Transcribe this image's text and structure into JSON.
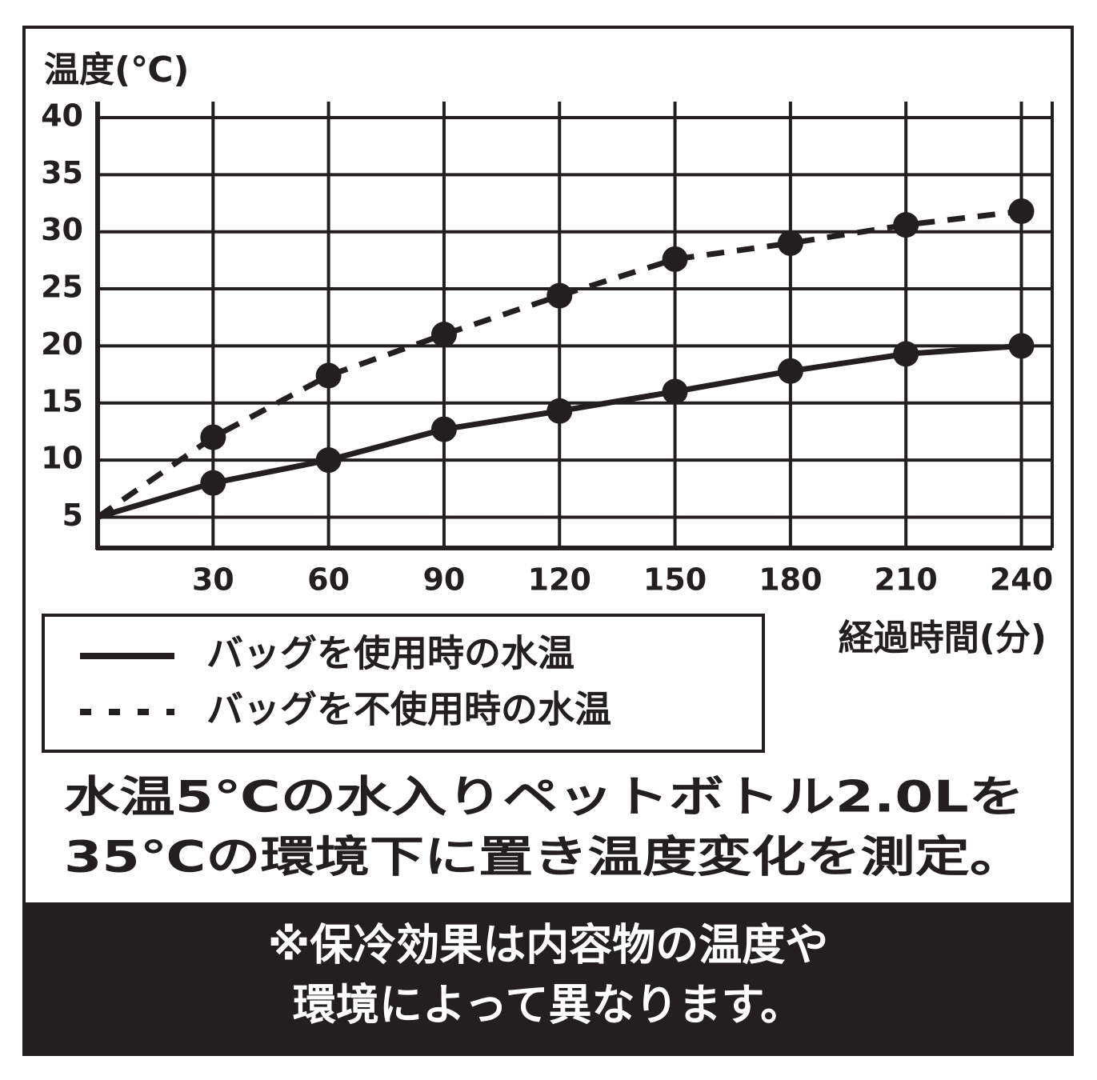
{
  "chart_data": {
    "type": "line",
    "y_label": "温度(℃)",
    "x_label": "経過時間(分)",
    "x": [
      0,
      30,
      60,
      90,
      120,
      150,
      180,
      210,
      240
    ],
    "series": [
      {
        "name": "バッグを使用時の水温",
        "color": "#231f20",
        "dash": false,
        "values": [
          5,
          8,
          10,
          12.7,
          14.3,
          16,
          17.8,
          19.3,
          20
        ]
      },
      {
        "name": "バッグを不使用時の水温",
        "color": "#231f20",
        "dash": true,
        "values": [
          5,
          12,
          17.4,
          21,
          24.4,
          27.6,
          29,
          30.6,
          31.8
        ]
      }
    ],
    "xlim": [
      0,
      248
    ],
    "xticks": [
      30,
      60,
      90,
      120,
      150,
      180,
      210,
      240
    ],
    "ylim": [
      2.3,
      40
    ],
    "yticks": [
      5,
      10,
      15,
      20,
      25,
      30,
      35,
      40
    ],
    "grid": true,
    "notes": [
      "水温5℃の水入りペットボトル2.0Lを",
      "35℃の環境下に置き温度変化を測定。"
    ],
    "footnotes": [
      "※保冷効果は内容物の温度や",
      "環境によって異なります。"
    ]
  }
}
